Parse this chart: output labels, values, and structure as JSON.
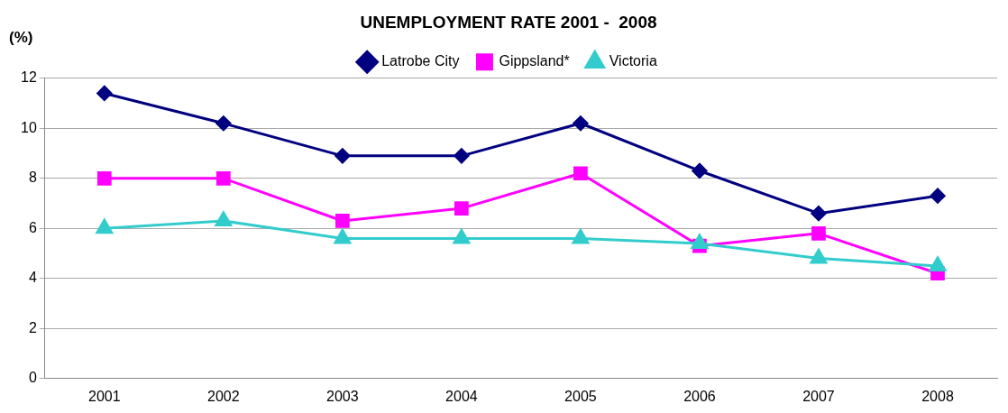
{
  "chart_data": {
    "type": "line",
    "title": "UNEMPLOYMENT RATE 2001 -  2008",
    "ylabel": "(%)",
    "categories": [
      "2001",
      "2002",
      "2003",
      "2004",
      "2005",
      "2006",
      "2007",
      "2008"
    ],
    "series": [
      {
        "name": "Latrobe City",
        "color": "#000080",
        "marker": "diamond",
        "values": [
          11.4,
          10.2,
          8.9,
          8.9,
          10.2,
          8.3,
          6.6,
          7.3
        ]
      },
      {
        "name": "Gippsland*",
        "color": "#ff00ff",
        "marker": "square",
        "values": [
          8.0,
          8.0,
          6.3,
          6.8,
          8.2,
          5.3,
          5.8,
          4.2
        ]
      },
      {
        "name": "Victoria",
        "color": "#33cccc",
        "marker": "triangle",
        "values": [
          6.0,
          6.3,
          5.6,
          5.6,
          5.6,
          5.4,
          4.8,
          4.5
        ]
      }
    ],
    "ylim": [
      0,
      12
    ],
    "yticks": [
      0,
      2,
      4,
      6,
      8,
      10,
      12
    ],
    "grid": "y",
    "legend": "top",
    "line_style": "solid"
  }
}
